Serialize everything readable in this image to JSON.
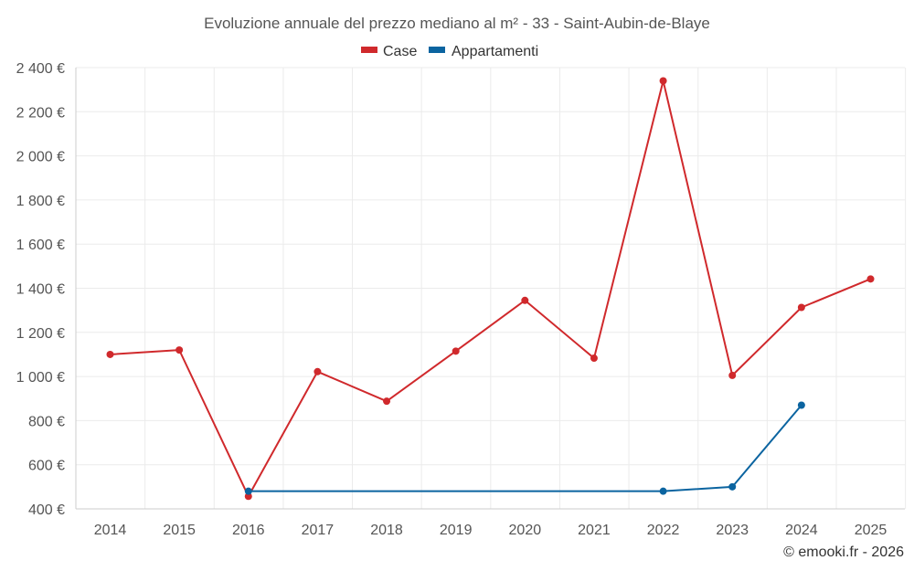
{
  "chart_data": {
    "type": "line",
    "title": "Evoluzione annuale del prezzo mediano al m² - 33 - Saint-Aubin-de-Blaye",
    "x": [
      2014,
      2015,
      2016,
      2017,
      2018,
      2019,
      2020,
      2021,
      2022,
      2023,
      2024,
      2025
    ],
    "x_tick_labels": [
      "2014",
      "2015",
      "2016",
      "2017",
      "2018",
      "2019",
      "2020",
      "2021",
      "2022",
      "2023",
      "2024",
      "2025"
    ],
    "ylim": [
      400,
      2400
    ],
    "y_ticks": [
      400,
      600,
      800,
      1000,
      1200,
      1400,
      1600,
      1800,
      2000,
      2200,
      2400
    ],
    "y_tick_labels": [
      "400 €",
      "600 €",
      "800 €",
      "1 000 €",
      "1 200 €",
      "1 400 €",
      "1 600 €",
      "1 800 €",
      "2 000 €",
      "2 200 €",
      "2 400 €"
    ],
    "xlabel": "",
    "ylabel": "",
    "grid": true,
    "legend_position": "top-center",
    "series": [
      {
        "name": "Case",
        "color": "#d0292c",
        "values": [
          1100,
          1120,
          457,
          1022,
          888,
          1115,
          1345,
          1083,
          2340,
          1005,
          1313,
          1442
        ]
      },
      {
        "name": "Appartamenti",
        "color": "#0b64a0",
        "values": [
          null,
          null,
          480,
          null,
          null,
          null,
          null,
          null,
          480,
          500,
          870,
          null
        ]
      }
    ]
  },
  "credit": "© emooki.fr - 2026"
}
